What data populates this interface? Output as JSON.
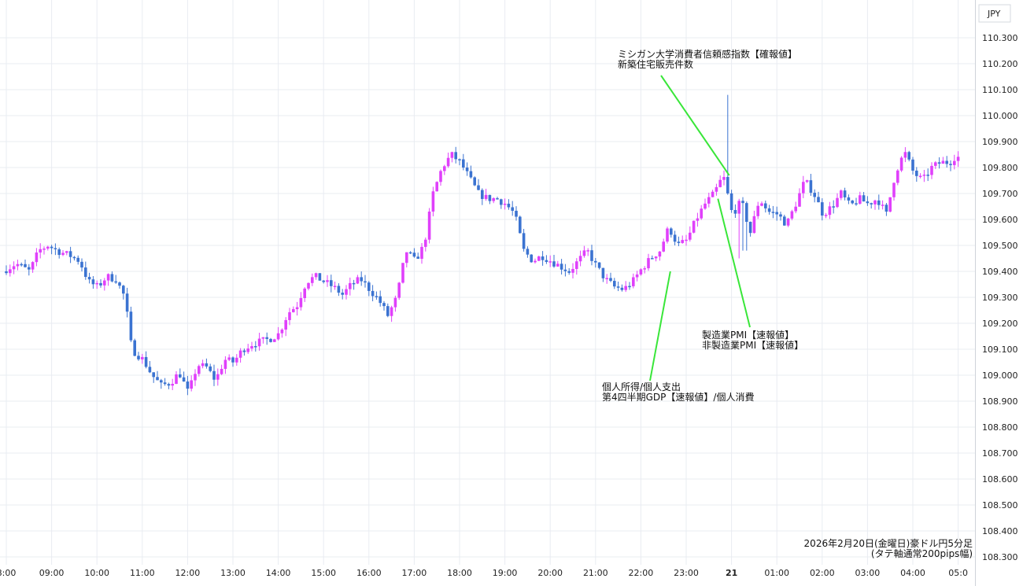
{
  "chart_data": {
    "type": "candlestick",
    "title": "2026年2月20日(金曜日)豪ドル円5分足",
    "subtitle": "(タテ軸通常200pips幅)",
    "currency_label": "JPY",
    "ylim": [
      108.3,
      110.35
    ],
    "yticks": [
      "110.300",
      "110.200",
      "110.100",
      "110.000",
      "109.900",
      "109.800",
      "109.700",
      "109.600",
      "109.500",
      "109.400",
      "109.300",
      "109.200",
      "109.100",
      "109.000",
      "108.900",
      "108.800",
      "108.700",
      "108.600",
      "108.500",
      "108.400",
      "108.300"
    ],
    "xticks": [
      {
        "label": "8:00",
        "t": 0
      },
      {
        "label": "09:00",
        "t": 1
      },
      {
        "label": "10:00",
        "t": 2
      },
      {
        "label": "11:00",
        "t": 3
      },
      {
        "label": "12:00",
        "t": 4
      },
      {
        "label": "13:00",
        "t": 5
      },
      {
        "label": "14:00",
        "t": 6
      },
      {
        "label": "15:00",
        "t": 7
      },
      {
        "label": "16:00",
        "t": 8
      },
      {
        "label": "17:00",
        "t": 9
      },
      {
        "label": "18:00",
        "t": 10
      },
      {
        "label": "19:00",
        "t": 11
      },
      {
        "label": "20:00",
        "t": 12
      },
      {
        "label": "21:00",
        "t": 13
      },
      {
        "label": "22:00",
        "t": 14
      },
      {
        "label": "23:00",
        "t": 15
      },
      {
        "label": "21",
        "t": 16,
        "bold": true
      },
      {
        "label": "01:00",
        "t": 17
      },
      {
        "label": "02:00",
        "t": 18
      },
      {
        "label": "03:00",
        "t": 19
      },
      {
        "label": "04:00",
        "t": 20
      },
      {
        "label": "05:0",
        "t": 21
      }
    ],
    "up_color": "#e040fb",
    "down_color": "#3b73d1",
    "price_path": [
      [
        0,
        109.4
      ],
      [
        0.3,
        109.43
      ],
      [
        0.6,
        109.4
      ],
      [
        0.8,
        109.48
      ],
      [
        1.0,
        109.5
      ],
      [
        1.2,
        109.48
      ],
      [
        1.5,
        109.46
      ],
      [
        1.7,
        109.44
      ],
      [
        1.9,
        109.36
      ],
      [
        2.1,
        109.34
      ],
      [
        2.3,
        109.38
      ],
      [
        2.5,
        109.37
      ],
      [
        2.7,
        109.3
      ],
      [
        2.85,
        109.1
      ],
      [
        3.1,
        109.06
      ],
      [
        3.3,
        109.0
      ],
      [
        3.5,
        108.96
      ],
      [
        3.7,
        108.97
      ],
      [
        3.9,
        109.01
      ],
      [
        4.1,
        108.93
      ],
      [
        4.3,
        109.04
      ],
      [
        4.5,
        109.03
      ],
      [
        4.7,
        108.98
      ],
      [
        4.9,
        109.06
      ],
      [
        5.1,
        109.05
      ],
      [
        5.3,
        109.1
      ],
      [
        5.5,
        109.12
      ],
      [
        5.7,
        109.13
      ],
      [
        5.9,
        109.14
      ],
      [
        6.1,
        109.16
      ],
      [
        6.3,
        109.24
      ],
      [
        6.5,
        109.27
      ],
      [
        6.7,
        109.36
      ],
      [
        6.9,
        109.38
      ],
      [
        7.1,
        109.36
      ],
      [
        7.3,
        109.34
      ],
      [
        7.5,
        109.31
      ],
      [
        7.7,
        109.35
      ],
      [
        7.9,
        109.37
      ],
      [
        8.1,
        109.33
      ],
      [
        8.3,
        109.29
      ],
      [
        8.5,
        109.23
      ],
      [
        8.7,
        109.3
      ],
      [
        8.9,
        109.48
      ],
      [
        9.1,
        109.44
      ],
      [
        9.3,
        109.5
      ],
      [
        9.5,
        109.7
      ],
      [
        9.7,
        109.8
      ],
      [
        9.9,
        109.85
      ],
      [
        10.1,
        109.82
      ],
      [
        10.3,
        109.76
      ],
      [
        10.5,
        109.7
      ],
      [
        10.7,
        109.68
      ],
      [
        10.9,
        109.68
      ],
      [
        11.1,
        109.66
      ],
      [
        11.3,
        109.62
      ],
      [
        11.5,
        109.48
      ],
      [
        11.7,
        109.44
      ],
      [
        11.9,
        109.46
      ],
      [
        12.1,
        109.44
      ],
      [
        12.3,
        109.42
      ],
      [
        12.5,
        109.4
      ],
      [
        12.7,
        109.44
      ],
      [
        12.9,
        109.48
      ],
      [
        13.1,
        109.42
      ],
      [
        13.3,
        109.37
      ],
      [
        13.5,
        109.34
      ],
      [
        13.7,
        109.33
      ],
      [
        13.9,
        109.36
      ],
      [
        14.1,
        109.41
      ],
      [
        14.3,
        109.45
      ],
      [
        14.5,
        109.48
      ],
      [
        14.7,
        109.57
      ],
      [
        14.9,
        109.5
      ],
      [
        15.1,
        109.52
      ],
      [
        15.3,
        109.6
      ],
      [
        15.5,
        109.66
      ],
      [
        15.7,
        109.7
      ],
      [
        15.9,
        109.77
      ],
      [
        16.1,
        109.62
      ],
      [
        16.3,
        109.67
      ],
      [
        16.5,
        109.55
      ],
      [
        16.7,
        109.68
      ],
      [
        16.9,
        109.63
      ],
      [
        17.1,
        109.62
      ],
      [
        17.3,
        109.58
      ],
      [
        17.5,
        109.66
      ],
      [
        17.7,
        109.75
      ],
      [
        17.9,
        109.7
      ],
      [
        18.1,
        109.62
      ],
      [
        18.3,
        109.65
      ],
      [
        18.5,
        109.7
      ],
      [
        18.7,
        109.65
      ],
      [
        18.9,
        109.68
      ],
      [
        19.1,
        109.66
      ],
      [
        19.3,
        109.68
      ],
      [
        19.5,
        109.62
      ],
      [
        19.7,
        109.78
      ],
      [
        19.9,
        109.86
      ],
      [
        20.1,
        109.78
      ],
      [
        20.3,
        109.75
      ],
      [
        20.5,
        109.8
      ],
      [
        20.7,
        109.82
      ],
      [
        20.9,
        109.82
      ],
      [
        21.0,
        109.84
      ]
    ],
    "annotations": [
      {
        "lines": [
          "ミシガン大学消費者信頼感指数【確報値】",
          "新築住宅販売件数"
        ]
      },
      {
        "lines": [
          "製造業PMI【速報値】",
          "非製造業PMI【速報値】"
        ]
      },
      {
        "lines": [
          "個人所得/個人支出",
          "第4四半期GDP【速報値】/個人消費"
        ]
      }
    ]
  }
}
